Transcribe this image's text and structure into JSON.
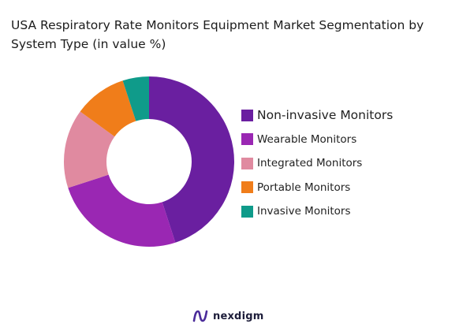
{
  "title": "USA Respiratory Rate Monitors Equipment Market Segmentation by System Type (in value %)",
  "logo": {
    "text": "nexdigm",
    "icon": "nexdigm-n-icon"
  },
  "chart_data": {
    "type": "pie",
    "subtype": "donut",
    "title": "USA Respiratory Rate Monitors Equipment Market Segmentation by System Type (in value %)",
    "legend_position": "right",
    "categories": [
      "Non-invasive Monitors",
      "Wearable Monitors",
      "Integrated Monitors",
      "Portable Monitors",
      "Invasive Monitors"
    ],
    "values": [
      45,
      25,
      15,
      10,
      5
    ],
    "colors": [
      "#6a1fa0",
      "#9a27b3",
      "#e08aa0",
      "#f07d1a",
      "#0f9b8a"
    ]
  }
}
